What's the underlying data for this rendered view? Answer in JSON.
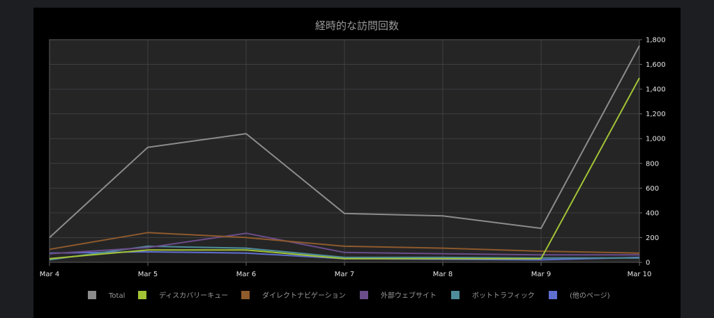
{
  "chart_data": {
    "type": "line",
    "title": "経時的な訪問回数",
    "x": [
      "Mar 4",
      "Mar 5",
      "Mar 6",
      "Mar 7",
      "Mar 8",
      "Mar 9",
      "Mar 10"
    ],
    "ylim": [
      0,
      1800
    ],
    "yticks": [
      0,
      200,
      400,
      600,
      800,
      1000,
      1200,
      1400,
      1600,
      1800
    ],
    "ytick_labels": [
      "0",
      "200",
      "400",
      "600",
      "800",
      "1,000",
      "1,200",
      "1,400",
      "1,600",
      "1,800"
    ],
    "yaxis_position": "right",
    "grid": true,
    "legend_position": "bottom",
    "series": [
      {
        "name": "Total",
        "color": "#8c8c8c",
        "values": [
          200,
          930,
          1040,
          395,
          375,
          275,
          1750
        ]
      },
      {
        "name": "ディスカバリーキュー",
        "color": "#a3c435",
        "values": [
          30,
          100,
          100,
          30,
          30,
          30,
          1490
        ]
      },
      {
        "name": "ダイレクトナビゲーション",
        "color": "#8f5a2c",
        "values": [
          105,
          240,
          200,
          130,
          115,
          90,
          75
        ]
      },
      {
        "name": "外部ウェブサイト",
        "color": "#6b4d8a",
        "values": [
          70,
          120,
          235,
          80,
          70,
          60,
          60
        ]
      },
      {
        "name": "ボットトラフィック",
        "color": "#4f8d9b",
        "values": [
          20,
          130,
          115,
          40,
          40,
          35,
          35
        ]
      },
      {
        "name": "(他のページ)",
        "color": "#5f6fcf",
        "values": [
          75,
          85,
          75,
          30,
          25,
          20,
          40
        ]
      }
    ]
  }
}
